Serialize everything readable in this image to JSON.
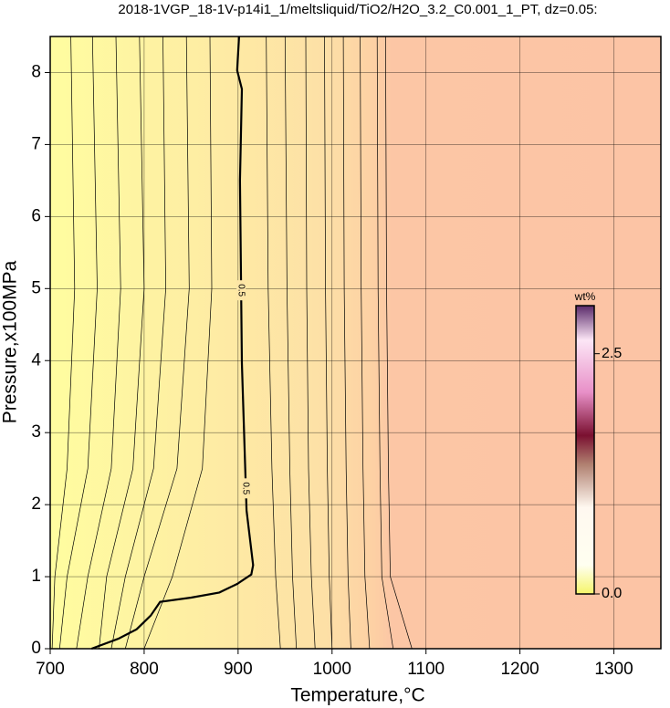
{
  "chart_data": {
    "type": "contour",
    "title": "2018-1VGP_18-1V-p14i1_1/meltsliquid/TiO2/H2O_3.2_C0.001_1_PT, dz=0.05:",
    "x_label": "Temperature,°C",
    "y_label": "Pressure,x100MPa",
    "xlim": [
      700,
      1350
    ],
    "ylim": [
      0,
      8.5
    ],
    "xticks": [
      700,
      800,
      900,
      1000,
      1100,
      1200,
      1300
    ],
    "yticks": [
      0,
      1,
      2,
      3,
      4,
      5,
      6,
      7,
      8
    ],
    "grid": true,
    "contours": [
      {
        "label": "0.5",
        "x": [
          901,
          899,
          904,
          902,
          904,
          909,
          916,
          914,
          899,
          880,
          850,
          817,
          807,
          792,
          773,
          744
        ],
        "y": [
          8.5,
          8.03,
          7.77,
          6.5,
          3.96,
          1.92,
          1.16,
          1.03,
          0.9,
          0.78,
          0.71,
          0.65,
          0.46,
          0.27,
          0.14,
          0
        ]
      },
      {
        "x": [
          930,
          932,
          936,
          940,
          945
        ],
        "y": [
          8.5,
          5,
          2.5,
          1,
          0
        ]
      },
      {
        "x": [
          950,
          952,
          955,
          958,
          962
        ],
        "y": [
          8.5,
          5,
          2.5,
          1,
          0
        ]
      },
      {
        "x": [
          972,
          973,
          975,
          978,
          982
        ],
        "y": [
          8.5,
          5,
          2.5,
          1,
          0
        ]
      },
      {
        "x": [
          992,
          993,
          995,
          997,
          1000
        ],
        "y": [
          8.5,
          5,
          2.5,
          1,
          0
        ]
      },
      {
        "x": [
          1012,
          1013,
          1015,
          1017,
          1020
        ],
        "y": [
          8.5,
          5,
          2.5,
          1,
          0
        ]
      },
      {
        "x": [
          1030,
          1031,
          1033,
          1035,
          1040
        ],
        "y": [
          8.5,
          5,
          2.5,
          1,
          0
        ]
      },
      {
        "x": [
          1048,
          1049,
          1051,
          1053,
          1065
        ],
        "y": [
          8.5,
          5,
          2.5,
          1,
          0
        ]
      },
      {
        "x": [
          1057,
          1058,
          1060,
          1062,
          1085
        ],
        "y": [
          8.5,
          5,
          2.5,
          1,
          0
        ]
      },
      {
        "x": [
          870,
          872,
          862,
          830,
          800
        ],
        "y": [
          8.5,
          5,
          2.5,
          1,
          0
        ]
      },
      {
        "x": [
          845,
          848,
          835,
          800,
          780
        ],
        "y": [
          8.5,
          5,
          2.5,
          1,
          0
        ]
      },
      {
        "x": [
          820,
          823,
          810,
          780,
          765
        ],
        "y": [
          8.5,
          5,
          2.5,
          1,
          0
        ]
      },
      {
        "x": [
          795,
          800,
          788,
          760,
          752
        ],
        "y": [
          8.5,
          5,
          2.5,
          1,
          0
        ]
      },
      {
        "x": [
          770,
          775,
          765,
          740,
          728
        ],
        "y": [
          8.5,
          5,
          2.5,
          1,
          0
        ]
      },
      {
        "x": [
          745,
          750,
          740,
          718,
          710
        ],
        "y": [
          8.5,
          5,
          2.5,
          1,
          0
        ]
      },
      {
        "x": [
          722,
          726,
          718,
          705,
          702
        ],
        "y": [
          8.5,
          5,
          2.5,
          1,
          0
        ]
      }
    ],
    "colorbar": {
      "label": "wt%",
      "lim": [
        0,
        3.0
      ],
      "ticks": [
        {
          "value": 0,
          "label": "0.0"
        },
        2.5
      ]
    }
  }
}
